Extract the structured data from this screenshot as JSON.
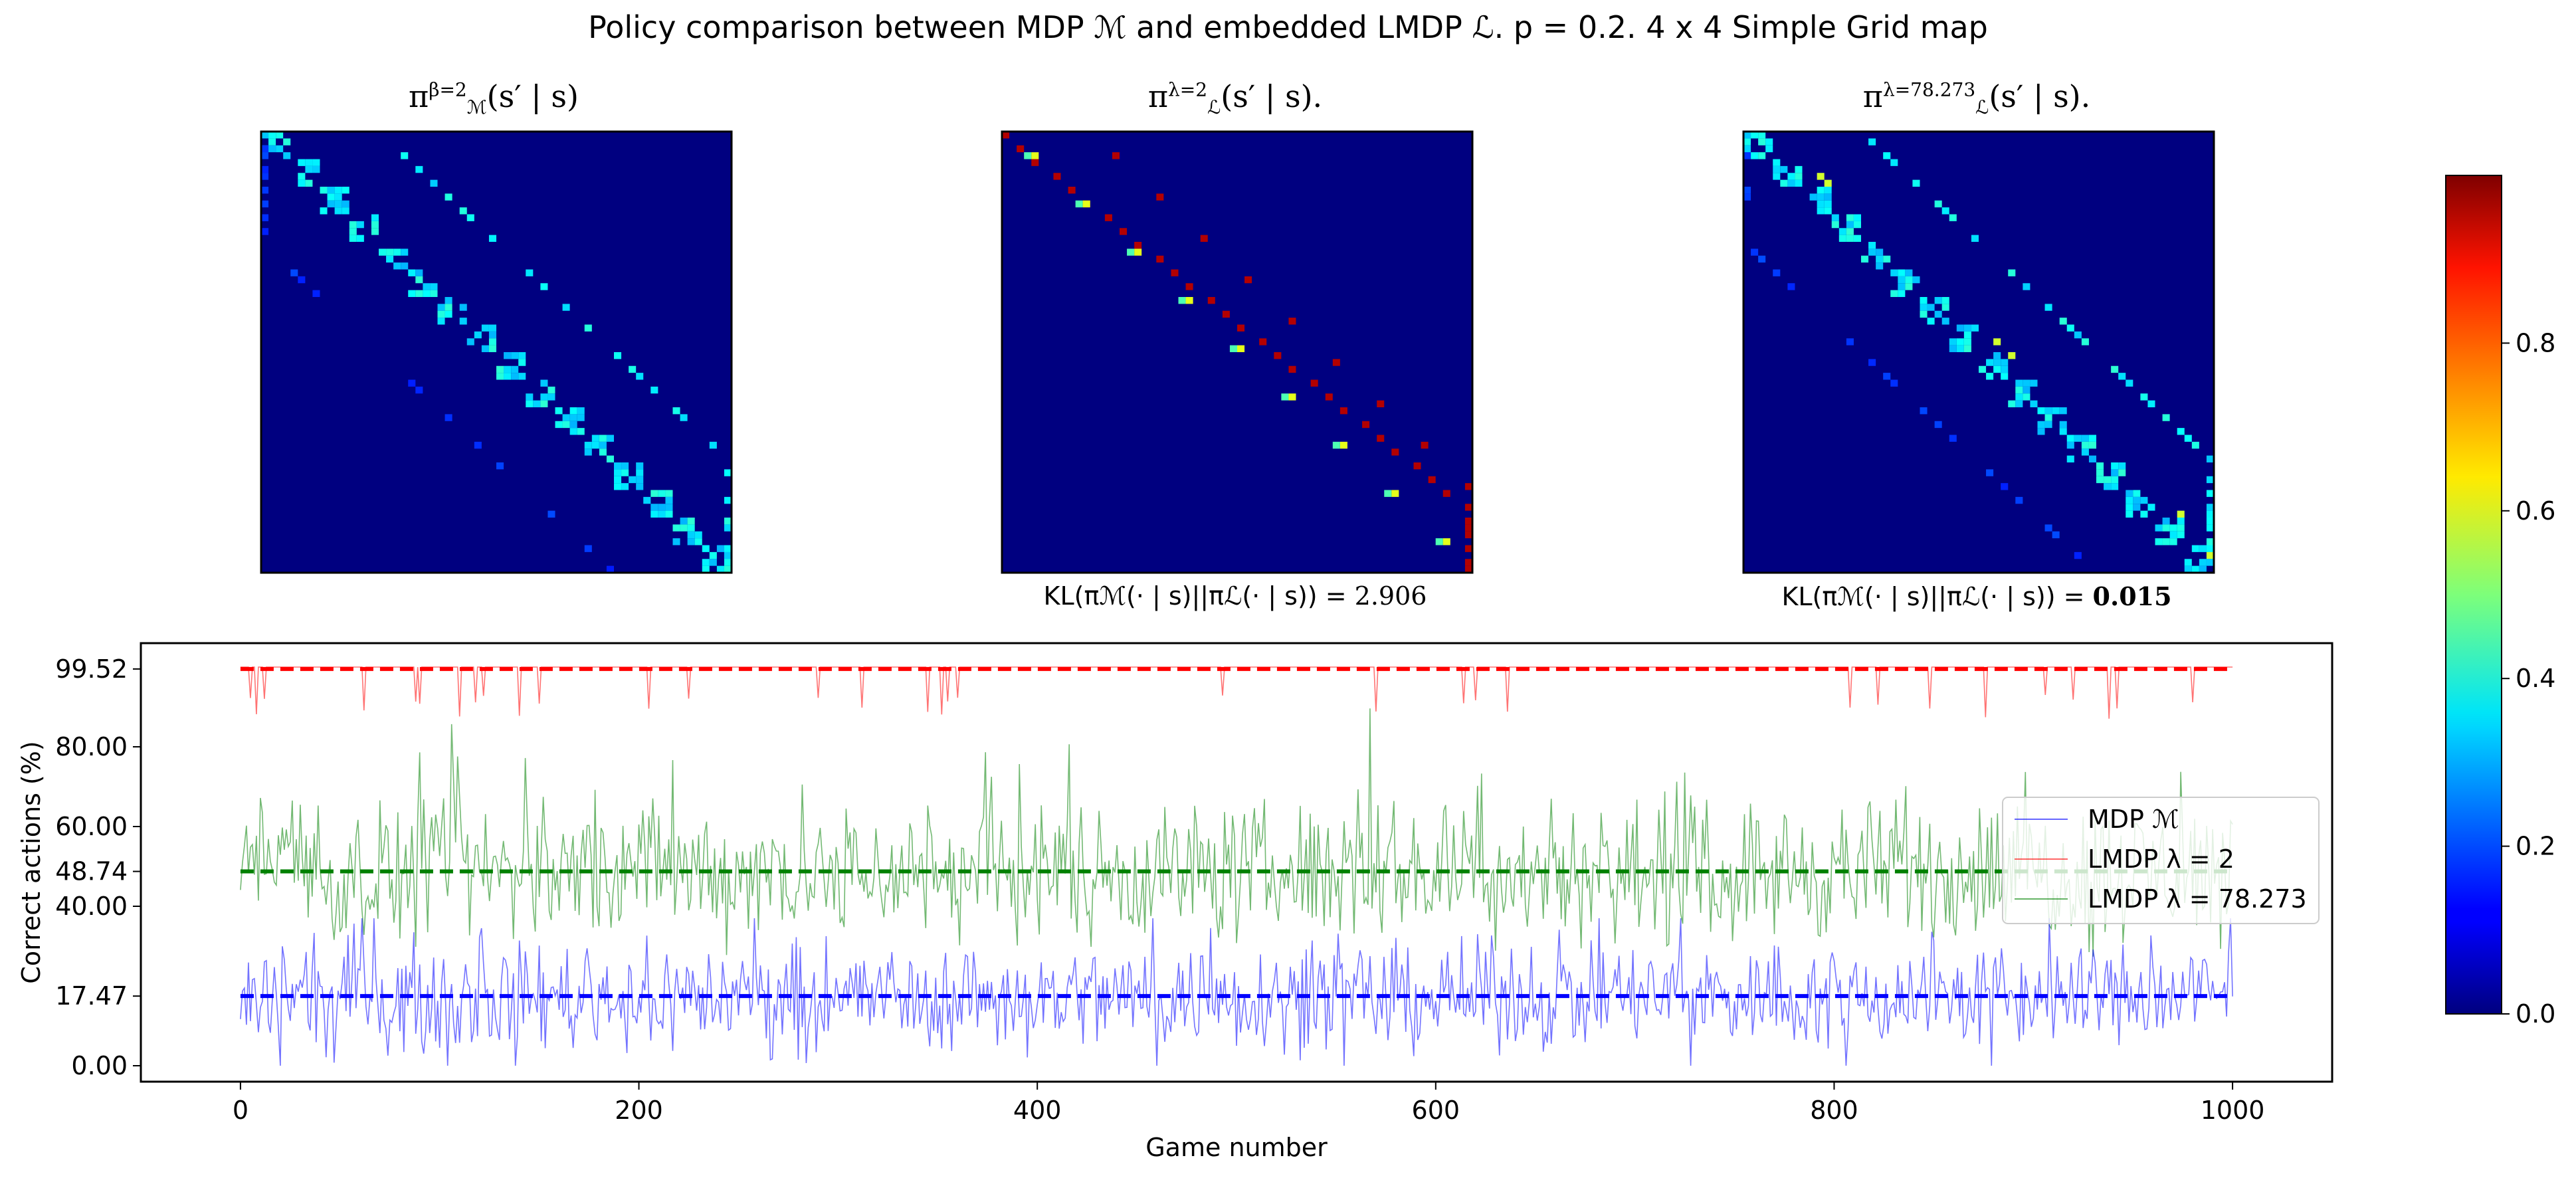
{
  "title": "Policy comparison between MDP ℳ and embedded LMDP ℒ. p = 0.2. 4 x 4 Simple Grid map",
  "heatmaps": [
    {
      "title_base": "π",
      "title_sub": "ℳ",
      "title_sup": "β=2",
      "title_tail": "(s′ | s)",
      "kl_text": "",
      "kl_value": "",
      "kl_bold": false
    },
    {
      "title_base": "π",
      "title_sub": "ℒ",
      "title_sup": "λ=2",
      "title_tail": "(s′ | s).",
      "kl_text": "KL(πℳ(· | s)||πℒ(· | s)) = ",
      "kl_value": "2.906",
      "kl_bold": false
    },
    {
      "title_base": "π",
      "title_sub": "ℒ",
      "title_sup": "λ=78.273",
      "title_tail": "(s′ | s).",
      "kl_text": "KL(πℳ(· | s)||πℒ(· | s)) = ",
      "kl_value": "0.015",
      "kl_bold": true
    }
  ],
  "colorbar": {
    "ticks": [
      "0.0",
      "0.2",
      "0.4",
      "0.6",
      "0.8"
    ],
    "tick_values": [
      0,
      0.2,
      0.4,
      0.6,
      0.8
    ],
    "range": [
      0,
      1
    ]
  },
  "chart_data": {
    "type": "line",
    "xlabel": "Game number",
    "ylabel": "Correct actions (%)",
    "xlim": [
      -50,
      1050
    ],
    "ylim": [
      -4,
      106
    ],
    "xticks": [
      0,
      200,
      400,
      600,
      800,
      1000
    ],
    "yticks": [
      0.0,
      17.47,
      40.0,
      48.74,
      60.0,
      80.0,
      99.52
    ],
    "ytick_labels": [
      "0.00",
      "17.47",
      "40.00",
      "48.74",
      "60.00",
      "80.00",
      "99.52"
    ],
    "legend_position": "center-right",
    "series": [
      {
        "name": "MDP ℳ",
        "color": "#0000ff",
        "mean": 17.47,
        "spread": 10,
        "min": 0,
        "max": 37
      },
      {
        "name": "LMDP λ = 2",
        "color": "#ff0000",
        "mean": 99.52,
        "baseline": 100,
        "dips": [
          5,
          8,
          12,
          62,
          88,
          90,
          110,
          118,
          122,
          140,
          150,
          205,
          225,
          290,
          312,
          345,
          352,
          355,
          360,
          493,
          570,
          614,
          620,
          636,
          808,
          822,
          848,
          876,
          906,
          920,
          938,
          942,
          980
        ]
      },
      {
        "name": "LMDP λ = 78.273",
        "color": "#008000",
        "mean": 48.74,
        "spread": 13,
        "min": 20,
        "max": 100
      }
    ]
  }
}
